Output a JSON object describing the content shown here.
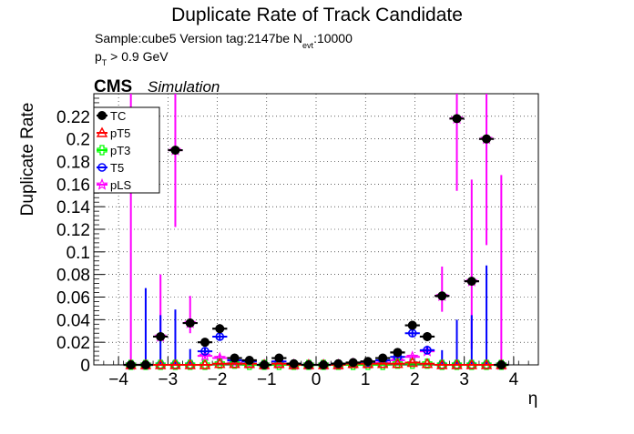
{
  "header": {
    "title": "Duplicate Rate of Track Candidate",
    "sample_line": "Sample:cube5   Version tag:2147be  N",
    "sample_sub": "evt",
    "sample_tail": ":10000",
    "pt_p": "p",
    "pt_sub": "T",
    "pt_tail": " > 0.9 GeV",
    "cms": "CMS",
    "simulation": "Simulation"
  },
  "colors": {
    "TC": "#000000",
    "pT5": "#ff0000",
    "pT3": "#00ff00",
    "T5": "#0000ff",
    "pLS": "#ff00ff",
    "pLS_fill": "#bb44bb"
  },
  "chart_data": {
    "type": "scatter",
    "title": "Duplicate Rate of Track Candidate",
    "xlabel": "η",
    "ylabel": "Duplicate Rate",
    "xlim": [
      -4.5,
      4.5
    ],
    "ylim": [
      0,
      0.24
    ],
    "xticks": [
      "−4",
      "−3",
      "−2",
      "−1",
      "0",
      "1",
      "2",
      "3",
      "4"
    ],
    "yticks": [
      "0",
      "0.02",
      "0.04",
      "0.06",
      "0.08",
      "0.1",
      "0.12",
      "0.14",
      "0.16",
      "0.18",
      "0.2",
      "0.22"
    ],
    "legend_position": "top-left",
    "bin_half_width": 0.15,
    "series": [
      {
        "name": "TC",
        "marker": "circle-filled",
        "x": [
          -3.75,
          -3.45,
          -3.15,
          -2.85,
          -2.55,
          -2.25,
          -1.95,
          -1.65,
          -1.35,
          -1.05,
          -0.75,
          -0.45,
          -0.15,
          0.15,
          0.45,
          0.75,
          1.05,
          1.35,
          1.65,
          1.95,
          2.25,
          2.55,
          2.85,
          3.15,
          3.45,
          3.75
        ],
        "y": [
          0,
          0,
          0.025,
          0.19,
          0.037,
          0.02,
          0.032,
          0.006,
          0.004,
          0,
          0.006,
          0.001,
          0,
          0,
          0.001,
          0.002,
          0.003,
          0.006,
          0.011,
          0.035,
          0.025,
          0.061,
          0.218,
          0.074,
          0.2,
          0
        ],
        "err": [
          0,
          0,
          0,
          0,
          0,
          0.003,
          0.004,
          0.0015,
          0.0012,
          0,
          0.0015,
          0.0008,
          0,
          0,
          0.0008,
          0.001,
          0.0012,
          0.0015,
          0.0025,
          0.004,
          0.004,
          0,
          0,
          0,
          0,
          0
        ]
      },
      {
        "name": "pT5",
        "marker": "triangle-open",
        "x": [
          -3.75,
          -3.45,
          -3.15,
          -2.85,
          -2.55,
          -2.25,
          -1.95,
          -1.65,
          -1.35,
          -1.05,
          -0.75,
          -0.45,
          -0.15,
          0.15,
          0.45,
          0.75,
          1.05,
          1.35,
          1.65,
          1.95,
          2.25,
          2.55,
          2.85,
          3.15,
          3.45,
          3.75
        ],
        "y": [
          0,
          0,
          0,
          0,
          0,
          0,
          0.001,
          0.001,
          0.001,
          0,
          0.001,
          0,
          0,
          0,
          0,
          0.001,
          0.001,
          0.001,
          0.001,
          0.002,
          0.001,
          0,
          0,
          0,
          0,
          0
        ]
      },
      {
        "name": "pT3",
        "marker": "cross-open",
        "x": [
          -3.75,
          -3.45,
          -3.15,
          -2.85,
          -2.55,
          -2.25,
          -1.95,
          -1.65,
          -1.35,
          -1.05,
          -0.75,
          -0.45,
          -0.15,
          0.15,
          0.45,
          0.75,
          1.05,
          1.35,
          1.65,
          1.95,
          2.25,
          2.55,
          2.85,
          3.15,
          3.45,
          3.75
        ],
        "y": [
          0,
          0,
          0,
          0,
          0,
          0,
          0.001,
          0.001,
          0,
          0,
          0,
          0,
          0,
          0,
          0,
          0,
          0,
          0,
          0.001,
          0.001,
          0.001,
          0,
          0,
          0,
          0,
          0
        ]
      },
      {
        "name": "T5",
        "marker": "circle-open",
        "x": [
          -3.75,
          -3.45,
          -3.15,
          -2.85,
          -2.55,
          -2.25,
          -1.95,
          -1.65,
          -1.35,
          -1.05,
          -0.75,
          -0.45,
          -0.15,
          0.15,
          0.45,
          0.75,
          1.05,
          1.35,
          1.65,
          1.95,
          2.25,
          2.55,
          2.85,
          3.15,
          3.45,
          3.75
        ],
        "y": [
          0,
          0,
          0,
          0,
          0,
          0.012,
          0.025,
          0.004,
          0.003,
          0,
          0.003,
          0.001,
          0,
          0,
          0.001,
          0.001,
          0.002,
          0.004,
          0.007,
          0.028,
          0.013,
          0,
          0,
          0,
          0,
          0
        ],
        "err_low": [
          0,
          0,
          0,
          0,
          0,
          0.002,
          0.003,
          0.001,
          0.001,
          0,
          0.001,
          0.0005,
          0,
          0,
          0.0005,
          0.0005,
          0.0008,
          0.001,
          0.0015,
          0.003,
          0.003,
          0,
          0,
          0,
          0,
          0
        ],
        "err_high": [
          0,
          0.068,
          0.044,
          0.049,
          0.014,
          0.003,
          0.003,
          0.001,
          0.001,
          0,
          0.001,
          0.0005,
          0,
          0,
          0.0005,
          0.0005,
          0.0008,
          0.001,
          0.0015,
          0.003,
          0.003,
          0.013,
          0.04,
          0.044,
          0.088,
          0
        ]
      },
      {
        "name": "pLS",
        "marker": "star-open",
        "x": [
          -3.75,
          -3.45,
          -3.15,
          -2.85,
          -2.55,
          -2.25,
          -1.95,
          -1.65,
          -1.35,
          -1.05,
          -0.75,
          -0.45,
          -0.15,
          0.15,
          0.45,
          0.75,
          1.05,
          1.35,
          1.65,
          1.95,
          2.25,
          2.55,
          2.85,
          3.15,
          3.45,
          3.75
        ],
        "y": [
          0,
          0,
          0.025,
          0.19,
          0.037,
          0.008,
          0.006,
          0.002,
          0.001,
          0,
          0.001,
          0,
          0,
          0,
          0,
          0.001,
          0.001,
          0.002,
          0.004,
          0.007,
          0.012,
          0.061,
          0.218,
          0.074,
          0.2,
          0
        ],
        "err_low": [
          0,
          0,
          0.005,
          0.068,
          0.009,
          0.002,
          0.002,
          0.001,
          0.0005,
          0,
          0.0005,
          0,
          0,
          0,
          0,
          0.0005,
          0.0005,
          0.001,
          0.0015,
          0.002,
          0.003,
          0.014,
          0.064,
          0.06,
          0.094,
          0
        ],
        "err_high": [
          0.24,
          0,
          0.055,
          0.05,
          0.024,
          0.003,
          0.003,
          0.001,
          0.0005,
          0,
          0.0005,
          0,
          0,
          0,
          0,
          0.0005,
          0.0005,
          0.001,
          0.0015,
          0.002,
          0.003,
          0.026,
          0.022,
          0.09,
          0.04,
          0.168
        ]
      }
    ]
  }
}
